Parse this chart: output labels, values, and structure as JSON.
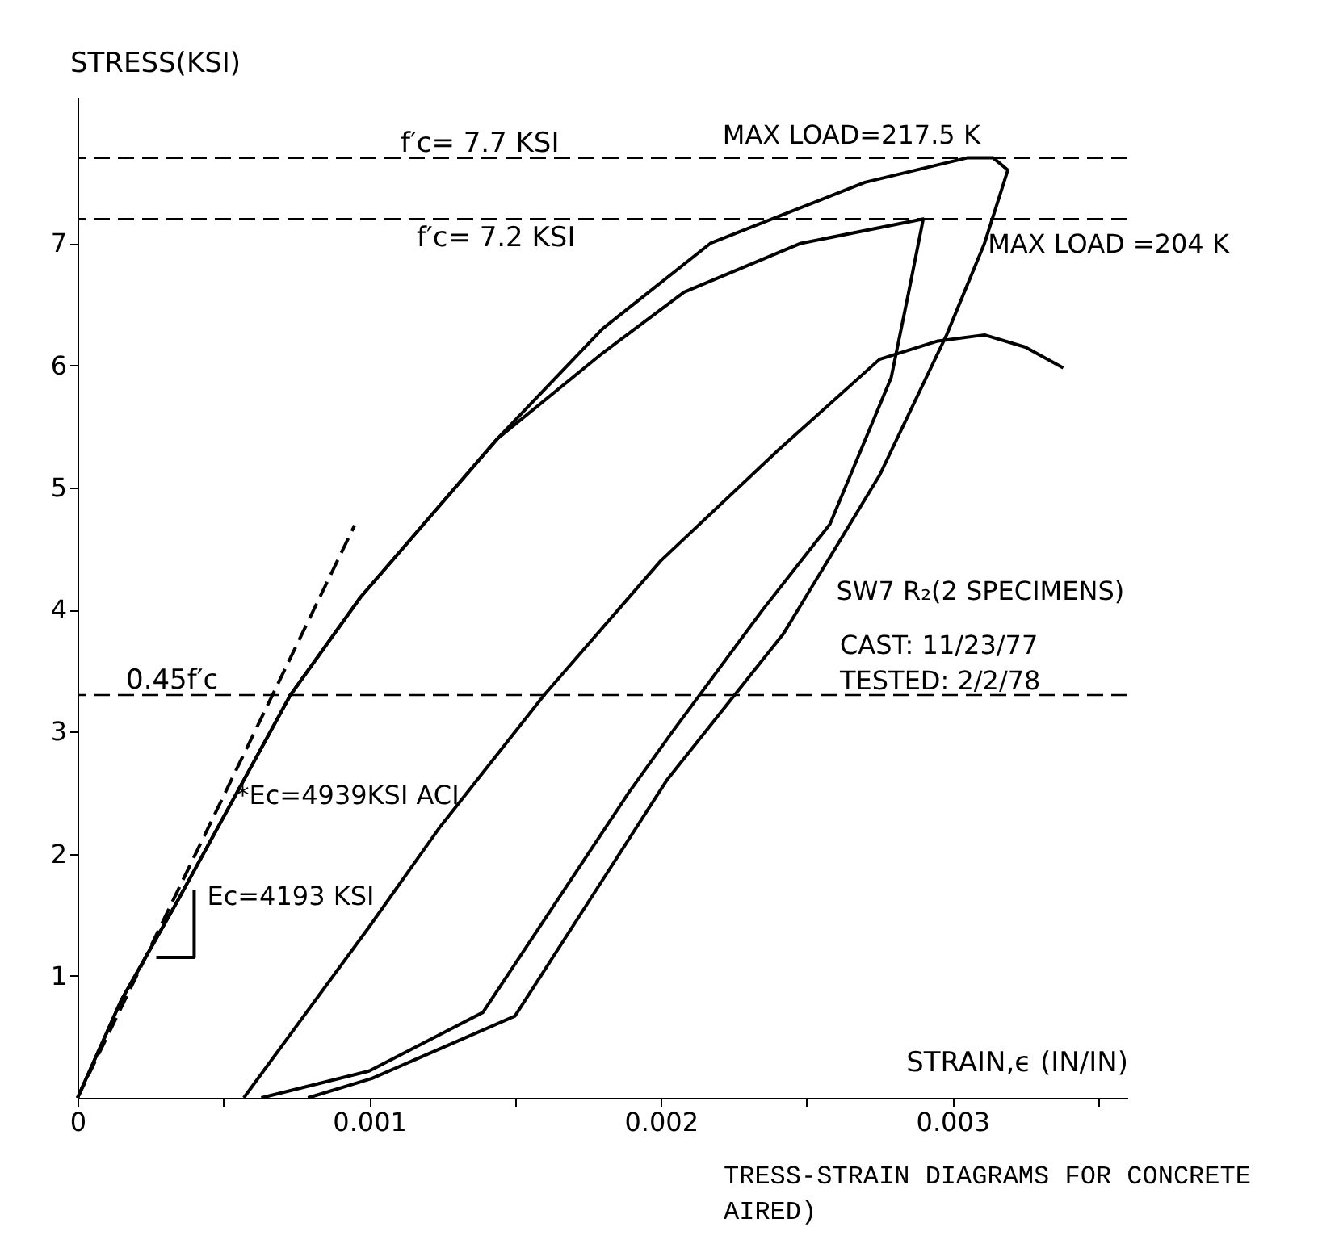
{
  "chart_data": {
    "type": "line",
    "xlabel": "STRAIN,ϵ (IN/IN)",
    "ylabel": "STRESS(KSI)",
    "xlim": [
      0,
      0.0036
    ],
    "ylim": [
      0,
      8.2
    ],
    "xticks": [
      {
        "value": 0,
        "label": "0"
      },
      {
        "value": 0.0005,
        "label": null
      },
      {
        "value": 0.001,
        "label": "0.001"
      },
      {
        "value": 0.0015,
        "label": null
      },
      {
        "value": 0.002,
        "label": "0.002"
      },
      {
        "value": 0.0025,
        "label": null
      },
      {
        "value": 0.003,
        "label": "0.003"
      },
      {
        "value": 0.0035,
        "label": null
      }
    ],
    "yticks": [
      1,
      2,
      3,
      4,
      5,
      6,
      7
    ],
    "grid": false,
    "marker": "none",
    "series": [
      {
        "color": "#000000",
        "line_style": "solid",
        "x": [
          0,
          0.00015,
          0.00034,
          0.00073,
          0.00097,
          0.00144,
          0.0018,
          0.00217,
          0.0027,
          0.00305,
          0.00314,
          0.00319,
          0.00311,
          0.00298,
          0.00275,
          0.00242,
          0.00202,
          0.0015,
          0.00101,
          0.00079
        ],
        "values": [
          0,
          0.8,
          1.6,
          3.3,
          4.1,
          5.4,
          6.3,
          7.0,
          7.5,
          7.7,
          7.7,
          7.6,
          7.0,
          6.25,
          5.1,
          3.8,
          2.6,
          0.67,
          0.16,
          0
        ]
      },
      {
        "color": "#000000",
        "line_style": "solid",
        "x": [
          0,
          0.00015,
          0.00034,
          0.00073,
          0.00097,
          0.00144,
          0.0018,
          0.00208,
          0.00248,
          0.0029,
          0.00285,
          0.00279,
          0.00258,
          0.00235,
          0.00204,
          0.00189,
          0.00139,
          0.001,
          0.00063
        ],
        "values": [
          0,
          0.8,
          1.6,
          3.3,
          4.1,
          5.4,
          6.1,
          6.6,
          7.0,
          7.2,
          6.6,
          5.9,
          4.7,
          4.0,
          3.0,
          2.5,
          0.7,
          0.22,
          0
        ]
      },
      {
        "color": "#000000",
        "line_style": "solid",
        "x": [
          0.00057,
          0.001,
          0.00124,
          0.0016,
          0.002,
          0.0024,
          0.00275,
          0.00295,
          0.00311,
          0.00325,
          0.00338
        ],
        "values": [
          0,
          1.4,
          2.21,
          3.3,
          4.4,
          5.3,
          6.05,
          6.2,
          6.25,
          6.15,
          5.98
        ]
      },
      {
        "color": "#000000",
        "line_style": "dashed",
        "x": [
          0,
          0.00095
        ],
        "values": [
          0,
          4.69
        ]
      },
      {
        "color": "#000000",
        "line_style": "solid",
        "x": [
          0.0004,
          0.0004,
          0.00027
        ],
        "values": [
          1.7,
          1.15,
          1.15
        ]
      }
    ],
    "ref_lines": [
      {
        "axis": "y",
        "value": 7.7,
        "label": "f′c= 7.7 KSI",
        "line_style": "dashed",
        "color": "#000000"
      },
      {
        "axis": "y",
        "value": 7.2,
        "label": "f′c= 7.2 KSI",
        "line_style": "dashed",
        "color": "#000000"
      },
      {
        "axis": "y",
        "value": 3.3,
        "label": "0.45f′c",
        "line_style": "dashed",
        "color": "#000000"
      }
    ],
    "annotations": [
      {
        "text": "MAX LOAD=217.5 K",
        "x": 0.00314,
        "y": 7.7
      },
      {
        "text": "MAX LOAD =204 K",
        "x": 0.0029,
        "y": 7.2
      },
      {
        "text": "SW7 R₂(2 SPECIMENS)",
        "x": 0.00238,
        "y": 4.2
      },
      {
        "text": "*Ec=4939KSI ACI",
        "x": 0.0005,
        "y": 2.47
      },
      {
        "text": "Ec=4193 KSI",
        "x": 0.0004,
        "y": 1.7
      },
      "CAST: 11/23/77",
      "TESTED: 2/2/78",
      "TRESS-STRAIN DIAGRAMS FOR CONCRETE",
      "AIRED)"
    ]
  }
}
